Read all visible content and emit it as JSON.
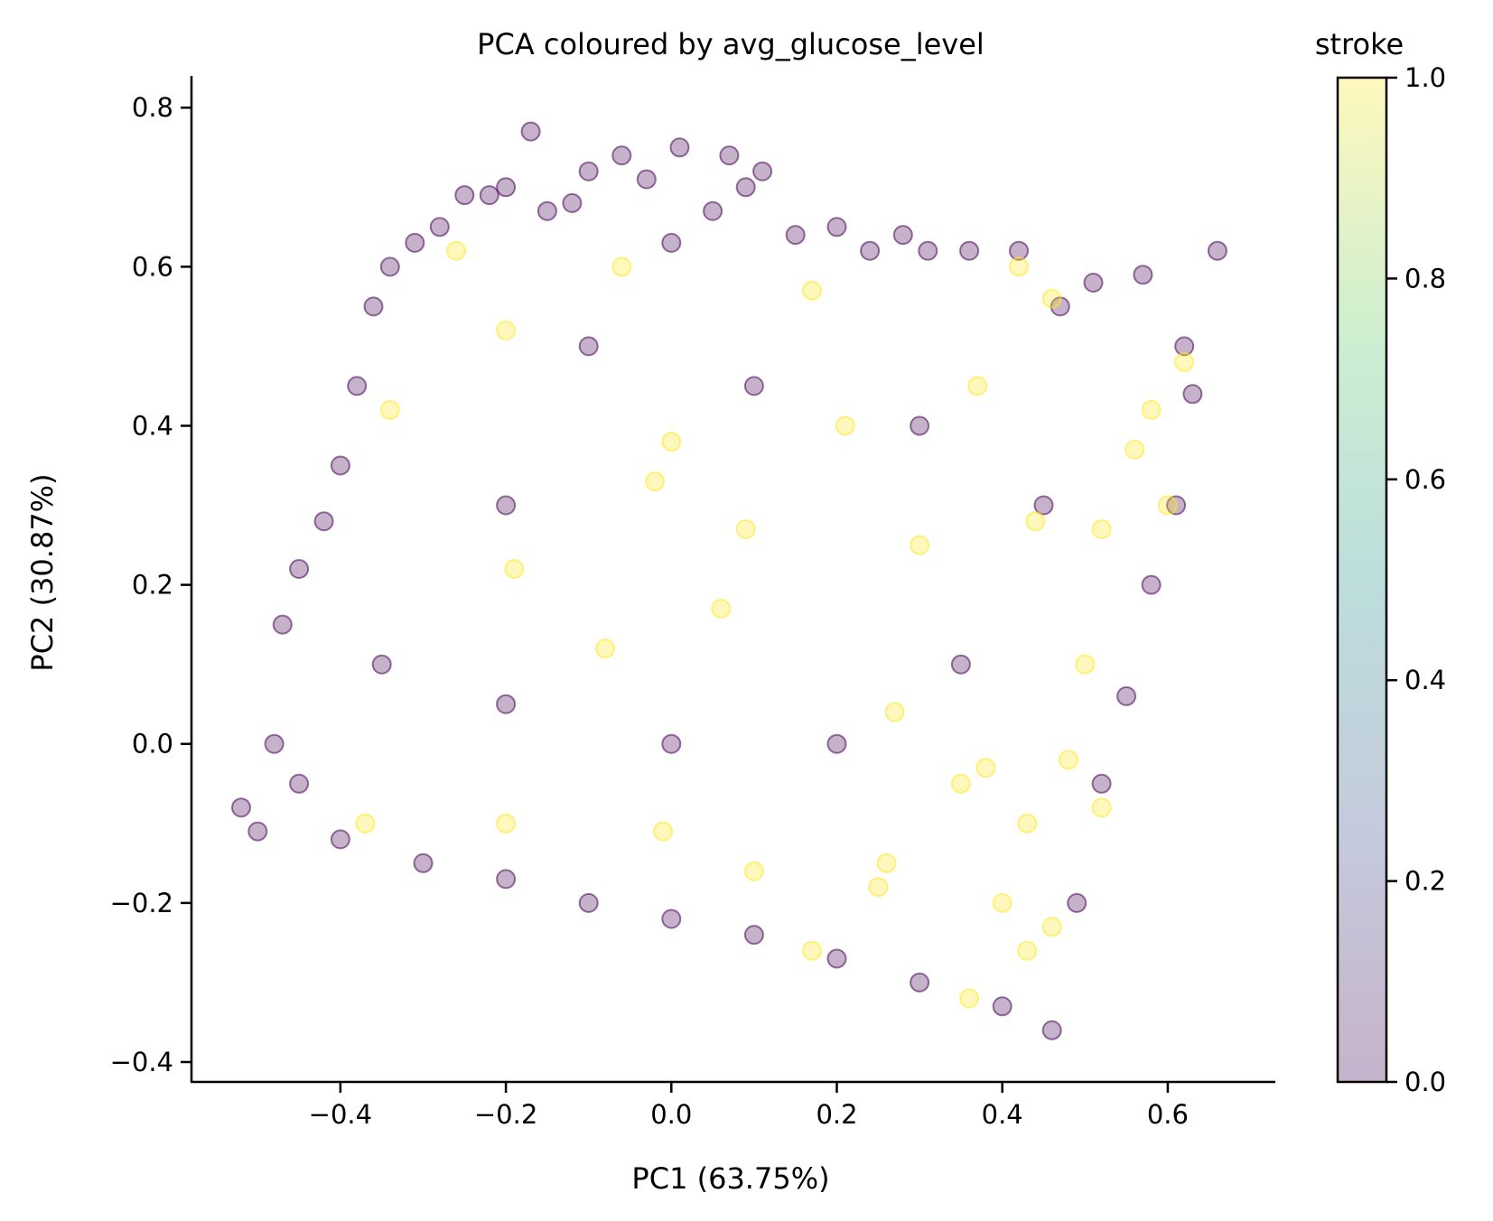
{
  "chart_data": {
    "type": "scatter",
    "title": "PCA coloured by avg_glucose_level",
    "xlabel": "PC1 (63.75%)",
    "ylabel": "PC2 (30.87%)",
    "xlim": [
      -0.58,
      0.73
    ],
    "ylim": [
      -0.425,
      0.84
    ],
    "xticks": [
      -0.4,
      -0.2,
      0.0,
      0.2,
      0.4,
      0.6
    ],
    "xtick_labels": [
      "−0.4",
      "−0.2",
      "0.0",
      "0.2",
      "0.4",
      "0.6"
    ],
    "yticks": [
      -0.4,
      -0.2,
      0.0,
      0.2,
      0.4,
      0.6,
      0.8
    ],
    "ytick_labels": [
      "−0.4",
      "−0.2",
      "0.0",
      "0.2",
      "0.4",
      "0.6",
      "0.8"
    ],
    "grid": false,
    "marker_alpha": 0.3,
    "colormap": "viridis",
    "colorbar": {
      "label": "stroke",
      "range": [
        0.0,
        1.0
      ],
      "ticks": [
        0.0,
        0.2,
        0.4,
        0.6,
        0.8,
        1.0
      ],
      "tick_labels": [
        "0.0",
        "0.2",
        "0.4",
        "0.6",
        "0.8",
        "1.0"
      ],
      "colors": [
        "#440154",
        "#3b528b",
        "#21918c",
        "#5ec962",
        "#fde725"
      ]
    },
    "series": [
      {
        "color_value": 0,
        "color": "#440154",
        "points": [
          [
            -0.52,
            -0.08
          ],
          [
            -0.5,
            -0.11
          ],
          [
            -0.48,
            0.0
          ],
          [
            -0.47,
            0.15
          ],
          [
            -0.45,
            0.22
          ],
          [
            -0.42,
            0.28
          ],
          [
            -0.4,
            0.35
          ],
          [
            -0.38,
            0.45
          ],
          [
            -0.36,
            0.55
          ],
          [
            -0.34,
            0.6
          ],
          [
            -0.31,
            0.63
          ],
          [
            -0.28,
            0.65
          ],
          [
            -0.25,
            0.69
          ],
          [
            -0.22,
            0.69
          ],
          [
            -0.2,
            0.7
          ],
          [
            -0.17,
            0.77
          ],
          [
            -0.15,
            0.67
          ],
          [
            -0.12,
            0.68
          ],
          [
            -0.1,
            0.72
          ],
          [
            -0.06,
            0.74
          ],
          [
            -0.03,
            0.71
          ],
          [
            0.0,
            0.63
          ],
          [
            0.01,
            0.75
          ],
          [
            0.05,
            0.67
          ],
          [
            0.07,
            0.74
          ],
          [
            0.09,
            0.7
          ],
          [
            0.11,
            0.72
          ],
          [
            0.15,
            0.64
          ],
          [
            0.2,
            0.65
          ],
          [
            0.24,
            0.62
          ],
          [
            0.28,
            0.64
          ],
          [
            0.31,
            0.62
          ],
          [
            0.36,
            0.62
          ],
          [
            0.42,
            0.62
          ],
          [
            0.47,
            0.55
          ],
          [
            0.51,
            0.58
          ],
          [
            0.57,
            0.59
          ],
          [
            0.62,
            0.5
          ],
          [
            0.66,
            0.62
          ],
          [
            0.63,
            0.44
          ],
          [
            0.61,
            0.3
          ],
          [
            0.58,
            0.2
          ],
          [
            0.55,
            0.06
          ],
          [
            0.52,
            -0.05
          ],
          [
            0.49,
            -0.2
          ],
          [
            0.46,
            -0.36
          ],
          [
            0.4,
            -0.33
          ],
          [
            0.3,
            -0.3
          ],
          [
            0.2,
            -0.27
          ],
          [
            0.1,
            -0.24
          ],
          [
            0.0,
            -0.22
          ],
          [
            -0.1,
            -0.2
          ],
          [
            -0.2,
            -0.17
          ],
          [
            -0.3,
            -0.15
          ],
          [
            -0.4,
            -0.12
          ],
          [
            -0.35,
            0.1
          ],
          [
            -0.2,
            0.3
          ],
          [
            -0.1,
            0.5
          ],
          [
            0.1,
            0.45
          ],
          [
            0.3,
            0.4
          ],
          [
            0.45,
            0.3
          ],
          [
            0.35,
            0.1
          ],
          [
            0.2,
            0.0
          ],
          [
            0.0,
            0.0
          ],
          [
            -0.2,
            0.05
          ],
          [
            -0.45,
            -0.05
          ]
        ]
      },
      {
        "color_value": 1,
        "color": "#fde725",
        "points": [
          [
            -0.26,
            0.62
          ],
          [
            -0.2,
            0.52
          ],
          [
            -0.34,
            0.42
          ],
          [
            -0.06,
            0.6
          ],
          [
            -0.02,
            0.33
          ],
          [
            0.0,
            0.38
          ],
          [
            0.17,
            0.57
          ],
          [
            0.21,
            0.4
          ],
          [
            0.42,
            0.6
          ],
          [
            0.46,
            0.56
          ],
          [
            0.37,
            0.45
          ],
          [
            0.44,
            0.28
          ],
          [
            0.52,
            0.27
          ],
          [
            0.58,
            0.42
          ],
          [
            0.62,
            0.48
          ],
          [
            0.56,
            0.37
          ],
          [
            0.6,
            0.3
          ],
          [
            0.3,
            0.25
          ],
          [
            -0.08,
            0.12
          ],
          [
            0.06,
            0.17
          ],
          [
            0.09,
            0.27
          ],
          [
            0.27,
            0.04
          ],
          [
            0.38,
            -0.03
          ],
          [
            0.43,
            -0.1
          ],
          [
            0.48,
            -0.02
          ],
          [
            0.52,
            -0.08
          ],
          [
            0.35,
            -0.05
          ],
          [
            0.1,
            -0.16
          ],
          [
            0.25,
            -0.18
          ],
          [
            0.4,
            -0.2
          ],
          [
            -0.37,
            -0.1
          ],
          [
            -0.2,
            -0.1
          ],
          [
            -0.01,
            -0.11
          ],
          [
            0.43,
            -0.26
          ],
          [
            0.46,
            -0.23
          ],
          [
            0.36,
            -0.32
          ],
          [
            0.26,
            -0.15
          ],
          [
            0.17,
            -0.26
          ],
          [
            0.5,
            0.1
          ],
          [
            -0.19,
            0.22
          ]
        ]
      }
    ]
  }
}
